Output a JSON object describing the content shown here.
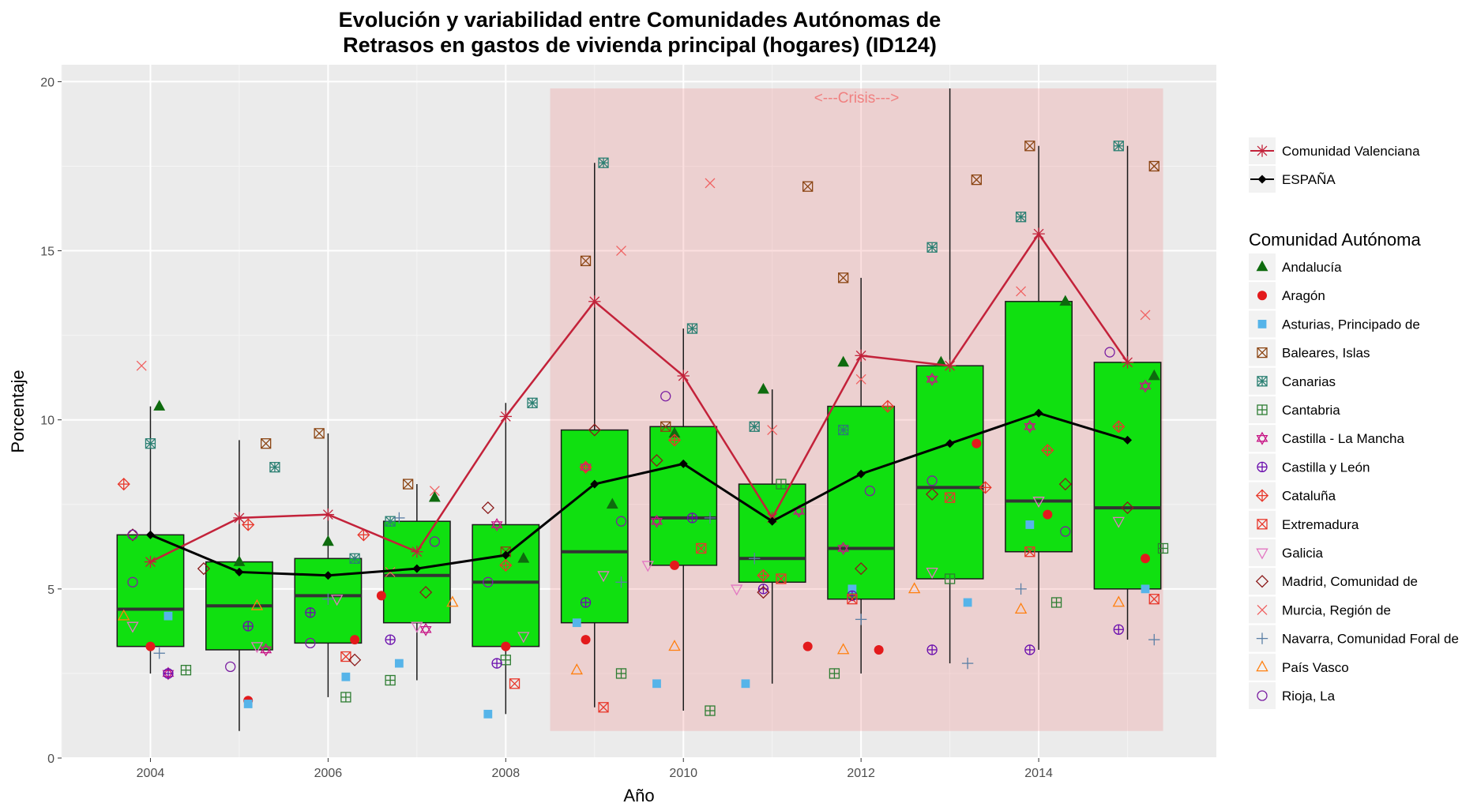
{
  "chart_data": {
    "type": "box",
    "title_line1": "Evolución y variabilidad entre Comunidades Autónomas de",
    "title_line2": "Retrasos en gastos de vivienda principal (hogares) (ID124)",
    "xlabel": "Año",
    "ylabel": "Porcentaje",
    "xlim": [
      2003,
      2016
    ],
    "ylim": [
      0,
      20.5
    ],
    "x_ticks": [
      "2004",
      "2006",
      "2008",
      "2010",
      "2012",
      "2014"
    ],
    "y_ticks": [
      "0",
      "5",
      "10",
      "15",
      "20"
    ],
    "grid": true,
    "crisis": {
      "x0": 2008.5,
      "x1": 2015.4,
      "y0": 0.8,
      "y1": 19.8,
      "label": "<---Crisis--->",
      "color": "#f08080"
    },
    "boxes": [
      {
        "year": 2004,
        "whisker_low": 2.5,
        "q1": 3.3,
        "median": 4.4,
        "q3": 6.6,
        "whisker_high": 10.4
      },
      {
        "year": 2005,
        "whisker_low": 0.8,
        "q1": 3.2,
        "median": 4.5,
        "q3": 5.8,
        "whisker_high": 9.4
      },
      {
        "year": 2006,
        "whisker_low": 1.8,
        "q1": 3.4,
        "median": 4.8,
        "q3": 5.9,
        "whisker_high": 9.6
      },
      {
        "year": 2007,
        "whisker_low": 2.3,
        "q1": 4.0,
        "median": 5.4,
        "q3": 7.0,
        "whisker_high": 8.1
      },
      {
        "year": 2008,
        "whisker_low": 1.3,
        "q1": 3.3,
        "median": 5.2,
        "q3": 6.9,
        "whisker_high": 10.5
      },
      {
        "year": 2009,
        "whisker_low": 1.5,
        "q1": 4.0,
        "median": 6.1,
        "q3": 9.7,
        "whisker_high": 17.6
      },
      {
        "year": 2010,
        "whisker_low": 1.4,
        "q1": 5.7,
        "median": 7.1,
        "q3": 9.8,
        "whisker_high": 12.7
      },
      {
        "year": 2011,
        "whisker_low": 2.2,
        "q1": 5.2,
        "median": 5.9,
        "q3": 8.1,
        "whisker_high": 10.9
      },
      {
        "year": 2012,
        "whisker_low": 2.5,
        "q1": 4.7,
        "median": 6.2,
        "q3": 10.4,
        "whisker_high": 14.2
      },
      {
        "year": 2013,
        "whisker_low": 2.8,
        "q1": 5.3,
        "median": 8.0,
        "q3": 11.6,
        "whisker_high": 19.8
      },
      {
        "year": 2014,
        "whisker_low": 3.2,
        "q1": 6.1,
        "median": 7.6,
        "q3": 13.5,
        "whisker_high": 18.1
      },
      {
        "year": 2015,
        "whisker_low": 3.5,
        "q1": 5.0,
        "median": 7.4,
        "q3": 11.7,
        "whisker_high": 18.1
      }
    ],
    "lines": [
      {
        "name": "Comunidad Valenciana",
        "color": "#c3223a",
        "marker": "asterisk",
        "x": [
          2004,
          2005,
          2006,
          2007,
          2008,
          2009,
          2010,
          2011,
          2012,
          2013,
          2014,
          2015
        ],
        "y": [
          5.8,
          7.1,
          7.2,
          6.1,
          10.1,
          13.5,
          11.3,
          7.1,
          11.9,
          11.6,
          15.5,
          11.7
        ]
      },
      {
        "name": "ESPAÑA",
        "color": "#000000",
        "marker": "diamond",
        "x": [
          2004,
          2005,
          2006,
          2007,
          2008,
          2009,
          2010,
          2011,
          2012,
          2013,
          2014,
          2015
        ],
        "y": [
          6.6,
          5.5,
          5.4,
          5.6,
          6.0,
          8.1,
          8.7,
          7.0,
          8.4,
          9.3,
          10.2,
          9.4
        ]
      }
    ],
    "legend_lines_order": [
      "Comunidad Valenciana",
      "ESPAÑA"
    ],
    "legend_title": "Comunidad Autónoma",
    "legend_position": "right",
    "series": [
      {
        "name": "Andalucía",
        "color": "#0e6b0e",
        "shape": "triangle-filled",
        "points": [
          [
            2004.1,
            10.4
          ],
          [
            2005.0,
            5.8
          ],
          [
            2006.0,
            6.4
          ],
          [
            2007.2,
            7.7
          ],
          [
            2008.2,
            5.9
          ],
          [
            2009.2,
            7.5
          ],
          [
            2009.9,
            9.6
          ],
          [
            2010.9,
            10.9
          ],
          [
            2011.8,
            11.7
          ],
          [
            2012.9,
            11.7
          ],
          [
            2014.3,
            13.5
          ],
          [
            2015.3,
            11.3
          ]
        ]
      },
      {
        "name": "Aragón",
        "color": "#e31a1c",
        "shape": "circle-filled",
        "points": [
          [
            2004.0,
            3.3
          ],
          [
            2005.1,
            1.7
          ],
          [
            2006.3,
            3.5
          ],
          [
            2006.6,
            4.8
          ],
          [
            2008.0,
            3.3
          ],
          [
            2008.9,
            3.5
          ],
          [
            2009.9,
            5.7
          ],
          [
            2011.4,
            3.3
          ],
          [
            2012.2,
            3.2
          ],
          [
            2013.3,
            9.3
          ],
          [
            2014.1,
            7.2
          ],
          [
            2015.2,
            5.9
          ]
        ]
      },
      {
        "name": "Asturias, Principado de",
        "color": "#56b4e9",
        "shape": "square-filled",
        "points": [
          [
            2004.2,
            4.2
          ],
          [
            2005.1,
            1.6
          ],
          [
            2006.2,
            2.4
          ],
          [
            2006.8,
            2.8
          ],
          [
            2007.8,
            1.3
          ],
          [
            2008.8,
            4.0
          ],
          [
            2009.7,
            2.2
          ],
          [
            2010.7,
            2.2
          ],
          [
            2011.9,
            5.0
          ],
          [
            2013.2,
            4.6
          ],
          [
            2013.9,
            6.9
          ],
          [
            2015.2,
            5.0
          ]
        ]
      },
      {
        "name": "Baleares, Islas",
        "color": "#8b4513",
        "shape": "square-x",
        "points": [
          [
            2005.3,
            9.3
          ],
          [
            2005.9,
            9.6
          ],
          [
            2006.9,
            8.1
          ],
          [
            2008.0,
            6.1
          ],
          [
            2008.9,
            14.7
          ],
          [
            2009.8,
            9.8
          ],
          [
            2011.4,
            16.9
          ],
          [
            2011.8,
            14.2
          ],
          [
            2013.3,
            17.1
          ],
          [
            2013.9,
            18.1
          ],
          [
            2015.3,
            17.5
          ]
        ]
      },
      {
        "name": "Canarias",
        "color": "#2a7f72",
        "shape": "square-cross",
        "points": [
          [
            2004.0,
            9.3
          ],
          [
            2005.4,
            8.6
          ],
          [
            2006.3,
            5.9
          ],
          [
            2006.7,
            7.0
          ],
          [
            2008.3,
            10.5
          ],
          [
            2009.1,
            17.6
          ],
          [
            2010.1,
            12.7
          ],
          [
            2010.8,
            9.8
          ],
          [
            2011.8,
            9.7
          ],
          [
            2012.8,
            15.1
          ],
          [
            2013.8,
            16.0
          ],
          [
            2014.9,
            18.1
          ]
        ]
      },
      {
        "name": "Cantabria",
        "color": "#2e7d32",
        "shape": "square-plus",
        "points": [
          [
            2004.4,
            2.6
          ],
          [
            2006.2,
            1.8
          ],
          [
            2006.7,
            2.3
          ],
          [
            2008.0,
            2.9
          ],
          [
            2009.3,
            2.5
          ],
          [
            2010.3,
            1.4
          ],
          [
            2011.1,
            8.1
          ],
          [
            2011.7,
            2.5
          ],
          [
            2013.0,
            5.3
          ],
          [
            2014.2,
            4.6
          ],
          [
            2015.4,
            6.2
          ]
        ]
      },
      {
        "name": "Castilla - La Mancha",
        "color": "#c71585",
        "shape": "star6",
        "points": [
          [
            2004.2,
            2.5
          ],
          [
            2005.3,
            3.2
          ],
          [
            2007.1,
            3.8
          ],
          [
            2007.9,
            6.9
          ],
          [
            2008.9,
            8.6
          ],
          [
            2009.7,
            7.0
          ],
          [
            2011.3,
            7.3
          ],
          [
            2011.8,
            6.2
          ],
          [
            2012.8,
            11.2
          ],
          [
            2013.9,
            9.8
          ],
          [
            2015.2,
            11.0
          ]
        ]
      },
      {
        "name": "Castilla y León",
        "color": "#6a0dad",
        "shape": "circle-plus",
        "points": [
          [
            2004.2,
            2.5
          ],
          [
            2005.1,
            3.9
          ],
          [
            2005.8,
            4.3
          ],
          [
            2006.7,
            3.5
          ],
          [
            2007.9,
            2.8
          ],
          [
            2008.9,
            4.6
          ],
          [
            2010.1,
            7.1
          ],
          [
            2010.9,
            5.0
          ],
          [
            2011.9,
            4.8
          ],
          [
            2012.8,
            3.2
          ],
          [
            2013.9,
            3.2
          ],
          [
            2014.9,
            3.8
          ]
        ]
      },
      {
        "name": "Cataluña",
        "color": "#e8382c",
        "shape": "diamond-plus",
        "points": [
          [
            2003.7,
            8.1
          ],
          [
            2005.1,
            6.9
          ],
          [
            2006.4,
            6.6
          ],
          [
            2008.0,
            5.7
          ],
          [
            2008.9,
            8.6
          ],
          [
            2009.9,
            9.4
          ],
          [
            2010.9,
            5.4
          ],
          [
            2012.3,
            10.4
          ],
          [
            2013.4,
            8.0
          ],
          [
            2014.1,
            9.1
          ],
          [
            2014.9,
            9.8
          ]
        ]
      },
      {
        "name": "Extremadura",
        "color": "#e8382c",
        "shape": "square-x",
        "points": [
          [
            2006.2,
            3.0
          ],
          [
            2008.1,
            2.2
          ],
          [
            2009.1,
            1.5
          ],
          [
            2010.2,
            6.2
          ],
          [
            2011.1,
            5.3
          ],
          [
            2011.9,
            4.7
          ],
          [
            2013.0,
            7.7
          ],
          [
            2013.9,
            6.1
          ],
          [
            2015.3,
            4.7
          ]
        ]
      },
      {
        "name": "Galicia",
        "color": "#e377c2",
        "shape": "triangle-down-open",
        "points": [
          [
            2003.8,
            3.9
          ],
          [
            2005.2,
            3.3
          ],
          [
            2006.1,
            4.7
          ],
          [
            2007.0,
            3.9
          ],
          [
            2008.2,
            3.6
          ],
          [
            2009.1,
            5.4
          ],
          [
            2009.6,
            5.7
          ],
          [
            2010.6,
            5.0
          ],
          [
            2012.8,
            5.5
          ],
          [
            2014.0,
            7.6
          ],
          [
            2014.9,
            7.0
          ]
        ]
      },
      {
        "name": "Madrid, Comunidad de",
        "color": "#8b1a1a",
        "shape": "diamond-open",
        "points": [
          [
            2003.8,
            6.6
          ],
          [
            2004.6,
            5.6
          ],
          [
            2006.3,
            2.9
          ],
          [
            2007.1,
            4.9
          ],
          [
            2007.8,
            7.4
          ],
          [
            2009.0,
            9.7
          ],
          [
            2009.7,
            8.8
          ],
          [
            2010.9,
            4.9
          ],
          [
            2012.0,
            5.6
          ],
          [
            2012.8,
            7.8
          ],
          [
            2014.3,
            8.1
          ],
          [
            2015.0,
            7.4
          ]
        ]
      },
      {
        "name": "Murcia, Región de",
        "color": "#f06060",
        "shape": "x",
        "points": [
          [
            2003.9,
            11.6
          ],
          [
            2006.7,
            5.5
          ],
          [
            2007.2,
            7.9
          ],
          [
            2009.3,
            15.0
          ],
          [
            2010.3,
            17.0
          ],
          [
            2011.0,
            9.7
          ],
          [
            2012.0,
            11.2
          ],
          [
            2013.8,
            13.8
          ],
          [
            2015.2,
            13.1
          ]
        ]
      },
      {
        "name": "Navarra, Comunidad Foral de",
        "color": "#5b7fa6",
        "shape": "plus",
        "points": [
          [
            2004.1,
            3.1
          ],
          [
            2006.0,
            4.7
          ],
          [
            2006.8,
            7.1
          ],
          [
            2009.3,
            5.2
          ],
          [
            2010.3,
            7.1
          ],
          [
            2010.8,
            5.9
          ],
          [
            2012.0,
            4.1
          ],
          [
            2013.2,
            2.8
          ],
          [
            2013.8,
            5.0
          ],
          [
            2015.3,
            3.5
          ]
        ]
      },
      {
        "name": "País Vasco",
        "color": "#ff7f0e",
        "shape": "triangle-open",
        "points": [
          [
            2003.7,
            4.2
          ],
          [
            2005.2,
            4.5
          ],
          [
            2007.4,
            4.6
          ],
          [
            2008.8,
            2.6
          ],
          [
            2009.9,
            3.3
          ],
          [
            2011.8,
            3.2
          ],
          [
            2012.6,
            5.0
          ],
          [
            2013.8,
            4.4
          ],
          [
            2014.9,
            4.6
          ]
        ]
      },
      {
        "name": "Rioja, La",
        "color": "#7b1fa2",
        "shape": "circle-open",
        "points": [
          [
            2003.8,
            6.6
          ],
          [
            2003.8,
            5.2
          ],
          [
            2004.9,
            2.7
          ],
          [
            2005.8,
            3.4
          ],
          [
            2007.2,
            6.4
          ],
          [
            2007.8,
            5.2
          ],
          [
            2009.3,
            7.0
          ],
          [
            2009.8,
            10.7
          ],
          [
            2012.1,
            7.9
          ],
          [
            2012.8,
            8.2
          ],
          [
            2014.3,
            6.7
          ],
          [
            2014.8,
            12.0
          ]
        ]
      }
    ]
  }
}
